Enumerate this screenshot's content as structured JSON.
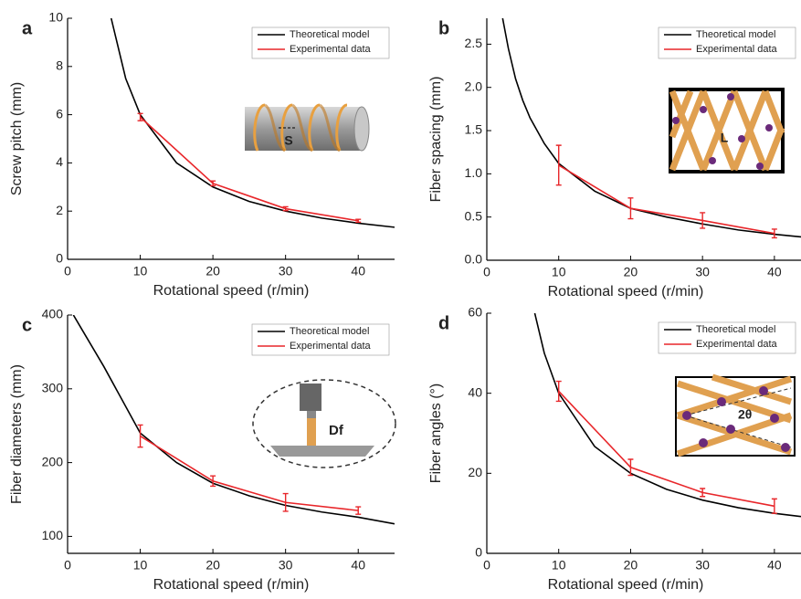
{
  "chart_data": [
    {
      "type": "line",
      "panel": "a",
      "x_label": "Rotational speed (r/min)",
      "y_label": "Screw pitch (mm)",
      "inset_label": "S",
      "xlim": [
        0,
        45
      ],
      "ylim": [
        0,
        10
      ],
      "xticks": [
        0,
        10,
        20,
        30,
        40
      ],
      "yticks": [
        0,
        2,
        4,
        6,
        8,
        10
      ],
      "series": [
        {
          "name": "Theoretical model",
          "color": "#000000",
          "x": [
            6,
            8,
            10,
            15,
            20,
            25,
            30,
            35,
            40,
            45
          ],
          "values": [
            10,
            7.5,
            6,
            4,
            3,
            2.4,
            2,
            1.71,
            1.5,
            1.33
          ]
        },
        {
          "name": "Experimental data",
          "color": "#e8262a",
          "x": [
            10,
            20,
            30,
            40
          ],
          "values": [
            5.9,
            3.15,
            2.1,
            1.6
          ],
          "errors": [
            0.15,
            0.1,
            0.08,
            0.06
          ]
        }
      ]
    },
    {
      "type": "line",
      "panel": "b",
      "x_label": "Rotational speed (r/min)",
      "y_label": "Fiber spacing (mm)",
      "inset_label": "L",
      "xlim": [
        0,
        43.7
      ],
      "ylim": [
        0,
        2.8
      ],
      "xticks": [
        0,
        10,
        20,
        30,
        40
      ],
      "yticks": [
        {
          "value": 0,
          "label": "0.0"
        },
        0.5,
        {
          "value": 1,
          "label": "1.0"
        },
        1.5,
        {
          "value": 2,
          "label": "2.0"
        },
        2.5
      ],
      "series": [
        {
          "name": "Theoretical model",
          "color": "#000000",
          "x": [
            2.2,
            3,
            4,
            5,
            6,
            8,
            10,
            15,
            20,
            25,
            30,
            35,
            40,
            43.7
          ],
          "values": [
            2.8,
            2.45,
            2.1,
            1.85,
            1.65,
            1.35,
            1.12,
            0.8,
            0.6,
            0.5,
            0.42,
            0.35,
            0.3,
            0.27
          ]
        },
        {
          "name": "Experimental data",
          "color": "#e8262a",
          "x": [
            10,
            20,
            30,
            40
          ],
          "values": [
            1.1,
            0.6,
            0.46,
            0.31
          ],
          "errors": [
            0.23,
            0.12,
            0.09,
            0.05
          ]
        }
      ]
    },
    {
      "type": "line",
      "panel": "c",
      "x_label": "Rotational speed (r/min)",
      "y_label": "Fiber diameters (mm)",
      "inset_label": "Df",
      "xlim": [
        0,
        45
      ],
      "ylim": [
        77,
        400
      ],
      "xticks": [
        0,
        10,
        20,
        30,
        40
      ],
      "yticks": [
        100,
        200,
        300,
        400
      ],
      "series": [
        {
          "name": "Theoretical model",
          "color": "#000000",
          "x": [
            0.8,
            2,
            5,
            10,
            15,
            20,
            25,
            30,
            35,
            40,
            45
          ],
          "values": [
            400,
            380,
            330,
            240,
            200,
            172,
            155,
            142,
            133,
            126,
            117
          ]
        },
        {
          "name": "Experimental data",
          "color": "#e8262a",
          "x": [
            10,
            20,
            30,
            40
          ],
          "values": [
            236,
            175,
            146,
            135
          ],
          "errors": [
            15,
            7,
            12,
            5
          ]
        }
      ]
    },
    {
      "type": "line",
      "panel": "d",
      "x_label": "Rotational speed (r/min)",
      "y_label": "Fiber angles (°)",
      "inset_label": "2θ",
      "xlim": [
        0,
        43.7
      ],
      "ylim": [
        0,
        60
      ],
      "xticks": [
        0,
        10,
        20,
        30,
        40
      ],
      "yticks": [
        0,
        20,
        40,
        60
      ],
      "series": [
        {
          "name": "Theoretical model",
          "color": "#000000",
          "x": [
            6.67,
            8,
            10,
            15,
            20,
            25,
            30,
            35,
            40,
            43.7
          ],
          "values": [
            60,
            50,
            40,
            26.7,
            20,
            16,
            13.3,
            11.4,
            10,
            9.2
          ]
        },
        {
          "name": "Experimental data",
          "color": "#e8262a",
          "x": [
            10,
            20,
            30,
            40
          ],
          "values": [
            40.5,
            21.5,
            15.2,
            11.8
          ],
          "errors": [
            2.5,
            2,
            1,
            1.8
          ]
        }
      ]
    }
  ]
}
